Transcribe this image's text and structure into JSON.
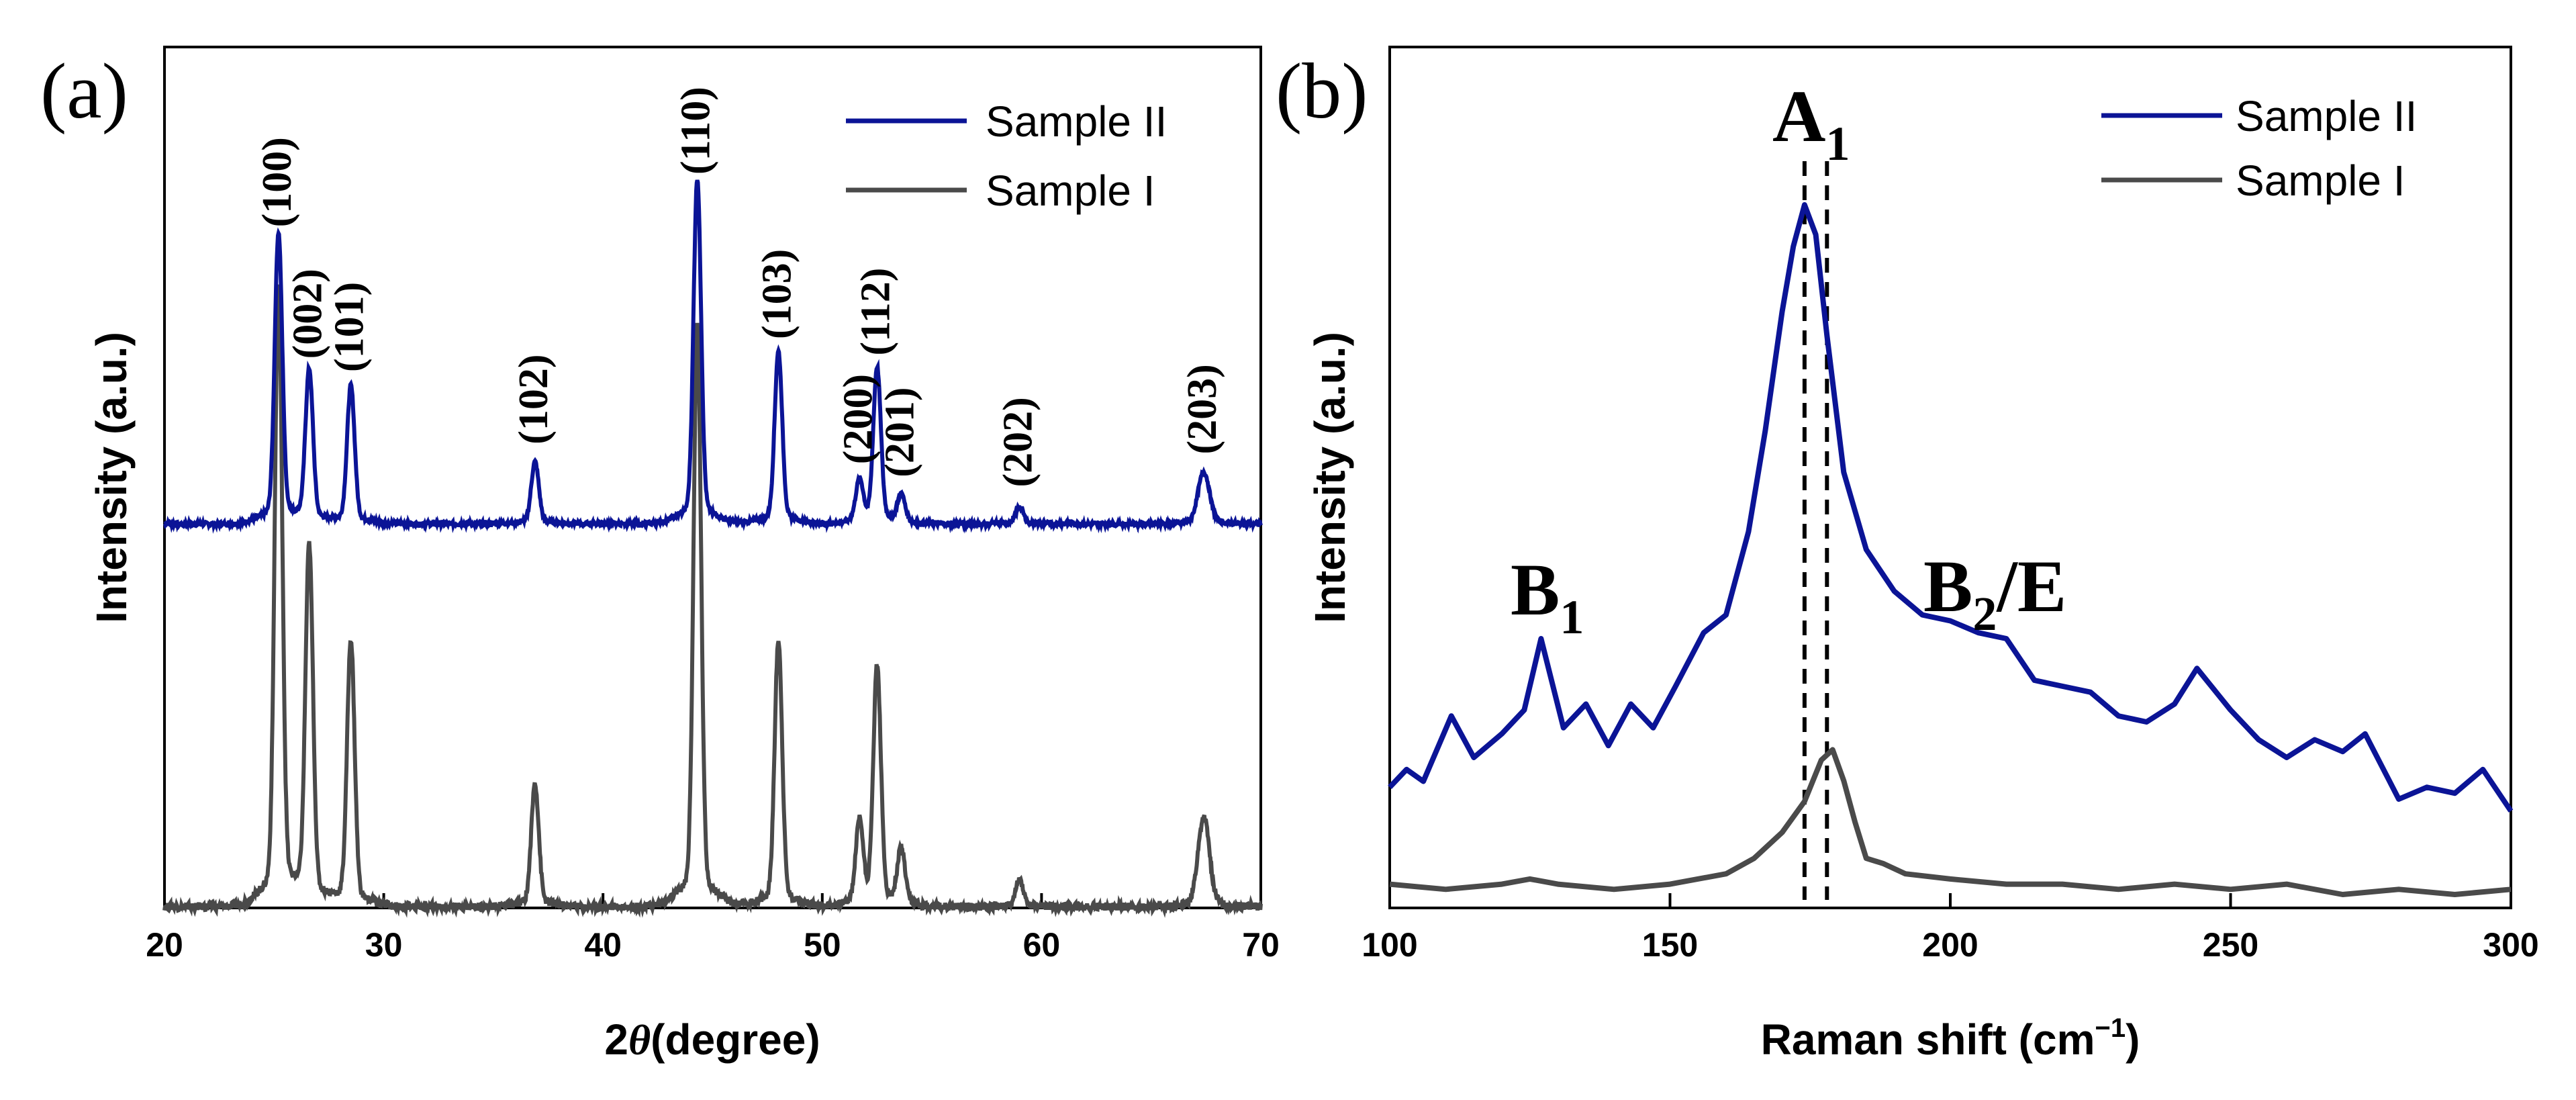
{
  "chart_data": [
    {
      "panel": "(a)",
      "type": "line",
      "xlabel_prefix": "2",
      "xlabel_symbol": "θ",
      "xlabel_suffix": "(degree)",
      "ylabel": "Intensity (a.u.)",
      "xlim": [
        20,
        70
      ],
      "xticks": [
        20,
        30,
        40,
        50,
        60,
        70
      ],
      "legend": [
        "Sample II",
        "Sample I"
      ],
      "legend_position": "top-right",
      "peaks": [
        {
          "label": "(100)",
          "x": 25.2,
          "rel_II": 0.84,
          "rel_I": 0.9
        },
        {
          "label": "(002)",
          "x": 26.6,
          "rel_II": 0.44,
          "rel_I": 0.52
        },
        {
          "label": "(101)",
          "x": 28.5,
          "rel_II": 0.4,
          "rel_I": 0.39
        },
        {
          "label": "(102)",
          "x": 36.9,
          "rel_II": 0.18,
          "rel_I": 0.18
        },
        {
          "label": "(110)",
          "x": 44.3,
          "rel_II": 1.0,
          "rel_I": 0.85
        },
        {
          "label": "(103)",
          "x": 48.0,
          "rel_II": 0.5,
          "rel_I": 0.39
        },
        {
          "label": "(200)",
          "x": 51.7,
          "rel_II": 0.12,
          "rel_I": 0.12
        },
        {
          "label": "(112)",
          "x": 52.5,
          "rel_II": 0.45,
          "rel_I": 0.35
        },
        {
          "label": "(201)",
          "x": 53.6,
          "rel_II": 0.08,
          "rel_I": 0.08
        },
        {
          "label": "(202)",
          "x": 59.0,
          "rel_II": 0.05,
          "rel_I": 0.04
        },
        {
          "label": "(203)",
          "x": 67.4,
          "rel_II": 0.15,
          "rel_I": 0.13
        }
      ],
      "series": [
        {
          "name": "Sample II",
          "color": "#0b1496",
          "baseline_rel": 0.0
        },
        {
          "name": "Sample I",
          "color": "#4a4a4a",
          "baseline_rel": 0.0
        }
      ]
    },
    {
      "panel": "(b)",
      "type": "line",
      "xlabel": "Raman shift (cm",
      "xlabel_sup": "−1",
      "xlabel_close": ")",
      "ylabel": "Intensity (a.u.)",
      "xlim": [
        100,
        300
      ],
      "xticks": [
        100,
        150,
        200,
        250,
        300
      ],
      "legend": [
        "Sample II",
        "Sample I"
      ],
      "legend_position": "top-right",
      "mode_labels": [
        {
          "main": "A",
          "sub": "1",
          "tail": ""
        },
        {
          "main": "B",
          "sub": "1",
          "tail": ""
        },
        {
          "main": "B",
          "sub": "2",
          "tail": "/E"
        }
      ],
      "dashed_lines_x": [
        174,
        178
      ],
      "series": [
        {
          "name": "Sample II",
          "color": "#0b1496",
          "x": [
            100,
            103,
            106,
            111,
            115,
            120,
            124,
            127,
            131,
            135,
            139,
            143,
            147,
            151,
            156,
            160,
            164,
            167,
            170,
            172,
            174,
            176,
            178,
            181,
            185,
            190,
            195,
            200,
            205,
            210,
            215,
            220,
            225,
            230,
            235,
            240,
            244,
            250,
            255,
            260,
            265,
            270,
            274,
            280,
            285,
            290,
            295,
            300
          ],
          "y": [
            0.02,
            0.05,
            0.03,
            0.14,
            0.07,
            0.11,
            0.15,
            0.27,
            0.12,
            0.16,
            0.09,
            0.16,
            0.12,
            0.19,
            0.28,
            0.31,
            0.45,
            0.62,
            0.82,
            0.93,
            1.0,
            0.95,
            0.78,
            0.55,
            0.42,
            0.35,
            0.31,
            0.3,
            0.28,
            0.27,
            0.2,
            0.19,
            0.18,
            0.14,
            0.13,
            0.16,
            0.22,
            0.15,
            0.1,
            0.07,
            0.1,
            0.08,
            0.11,
            0.0,
            0.02,
            0.01,
            0.05,
            -0.02
          ]
        },
        {
          "name": "Sample I",
          "color": "#4a4a4a",
          "x": [
            100,
            110,
            120,
            125,
            130,
            140,
            150,
            160,
            165,
            170,
            174,
            177,
            179,
            181,
            183,
            185,
            188,
            192,
            200,
            210,
            220,
            230,
            240,
            250,
            260,
            270,
            280,
            290,
            300
          ],
          "y": [
            0.02,
            0.01,
            0.02,
            0.03,
            0.02,
            0.01,
            0.02,
            0.04,
            0.07,
            0.12,
            0.18,
            0.26,
            0.28,
            0.22,
            0.14,
            0.07,
            0.06,
            0.04,
            0.03,
            0.02,
            0.02,
            0.01,
            0.02,
            0.01,
            0.02,
            0.0,
            0.01,
            0.0,
            0.01
          ]
        }
      ]
    }
  ]
}
